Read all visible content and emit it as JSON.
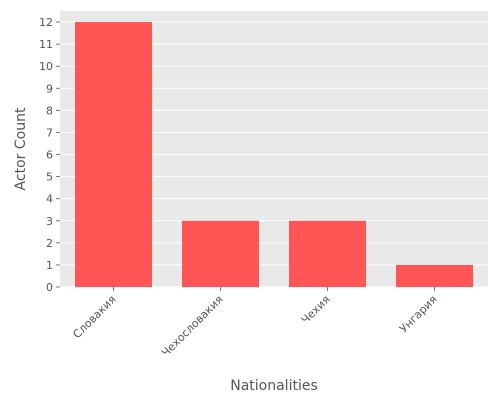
{
  "chart_data": {
    "type": "bar",
    "categories": [
      "Словакия",
      "Чехословакия",
      "Чехия",
      "Унгария"
    ],
    "values": [
      12,
      3,
      3,
      1
    ],
    "title": "",
    "xlabel": "Nationalities",
    "ylabel": "Actor Count",
    "ylim": [
      0,
      12.5
    ],
    "yticks": [
      0,
      1,
      2,
      3,
      4,
      5,
      6,
      7,
      8,
      9,
      10,
      11,
      12
    ],
    "grid": true,
    "legend": "none",
    "colors": {
      "bar": "#ff5555",
      "plot_background": "#e9e9e9",
      "grid": "#ffffff",
      "text": "#555555"
    }
  }
}
